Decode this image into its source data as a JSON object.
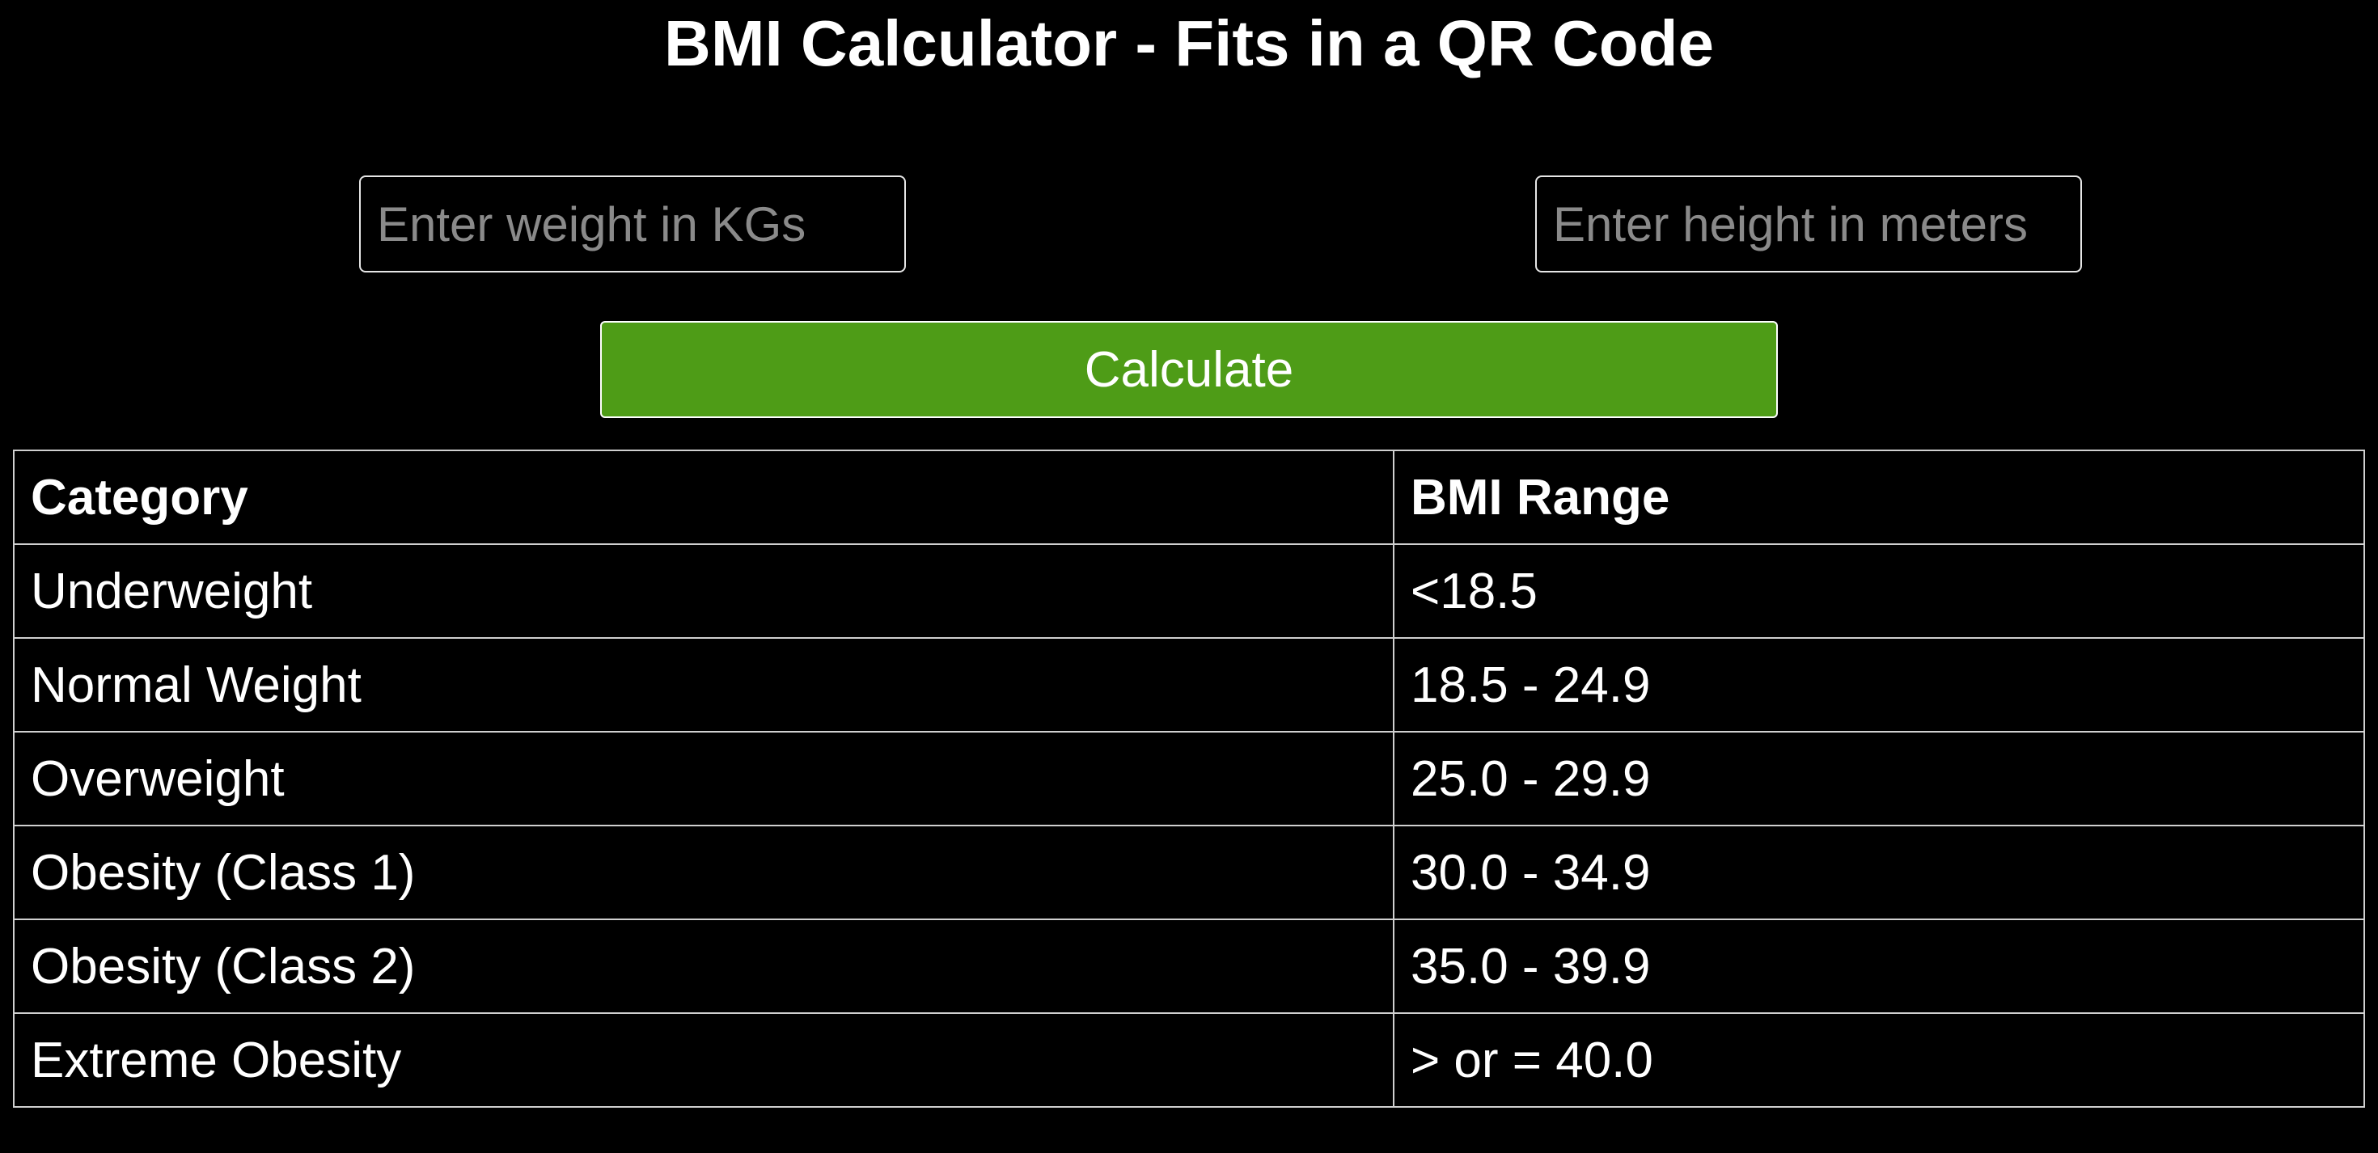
{
  "title": "BMI Calculator - Fits in a QR Code",
  "inputs": {
    "weight_placeholder": "Enter weight in KGs",
    "height_placeholder": "Enter height in meters"
  },
  "button": {
    "label": "Calculate",
    "color": "#4e9c17"
  },
  "table": {
    "headers": [
      "Category",
      "BMI Range"
    ],
    "rows": [
      [
        "Underweight",
        "<18.5"
      ],
      [
        "Normal Weight",
        "18.5 - 24.9"
      ],
      [
        "Overweight",
        "25.0 - 29.9"
      ],
      [
        "Obesity (Class 1)",
        "30.0 - 34.9"
      ],
      [
        "Obesity (Class 2)",
        "35.0 - 39.9"
      ],
      [
        "Extreme Obesity",
        "> or = 40.0"
      ]
    ]
  }
}
